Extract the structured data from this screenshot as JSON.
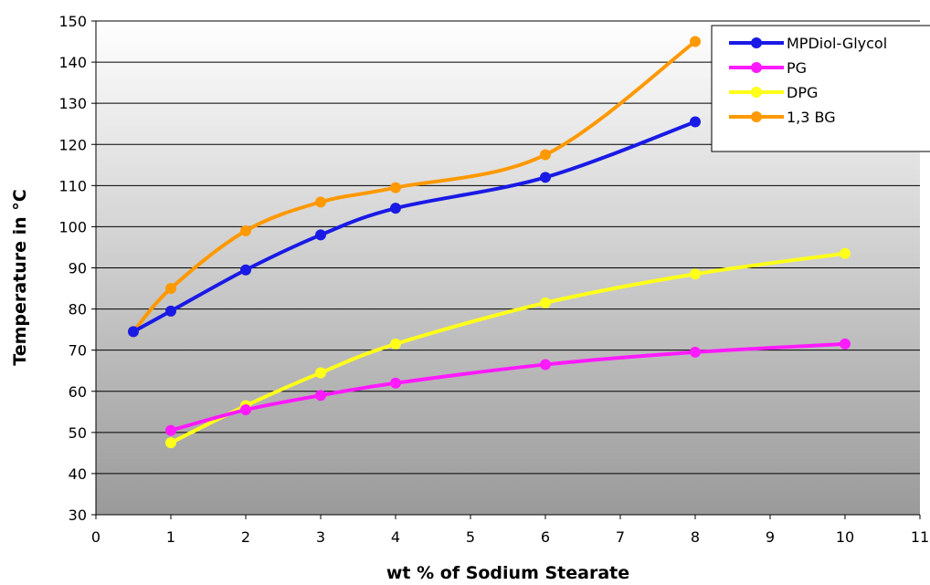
{
  "chart_data": {
    "type": "line",
    "title": "",
    "xlabel": "wt % of Sodium Stearate",
    "ylabel": "Temperature in °C",
    "xlim": [
      0,
      11
    ],
    "ylim": [
      30,
      150
    ],
    "x_ticks": [
      0,
      1,
      2,
      3,
      4,
      5,
      6,
      7,
      8,
      9,
      10,
      11
    ],
    "y_ticks": [
      30,
      40,
      50,
      60,
      70,
      80,
      90,
      100,
      110,
      120,
      130,
      140,
      150
    ],
    "grid": "horizontal",
    "legend_position": "top-right",
    "background": "vertical gradient, white at top to gray at bottom",
    "series": [
      {
        "name": "MPDiol-Glycol",
        "color": "#1a1ae6",
        "x": [
          0.5,
          1,
          2,
          3,
          4,
          6,
          8
        ],
        "y": [
          74.5,
          79.5,
          89.5,
          98,
          104.5,
          112,
          125.5
        ]
      },
      {
        "name": "PG",
        "color": "#ff1aff",
        "x": [
          1,
          2,
          3,
          4,
          6,
          8,
          10
        ],
        "y": [
          50.5,
          55.5,
          59,
          62,
          66.5,
          69.5,
          71.5
        ]
      },
      {
        "name": "DPG",
        "color": "#ffff1a",
        "x": [
          1,
          2,
          3,
          4,
          6,
          8,
          10
        ],
        "y": [
          47.5,
          56.5,
          64.5,
          71.5,
          81.5,
          88.5,
          93.5
        ]
      },
      {
        "name": "1,3 BG",
        "color": "#ff9900",
        "x": [
          0.5,
          1,
          2,
          3,
          4,
          6,
          8
        ],
        "y": [
          74.5,
          85,
          99,
          106,
          109.5,
          117.5,
          145
        ]
      }
    ]
  }
}
